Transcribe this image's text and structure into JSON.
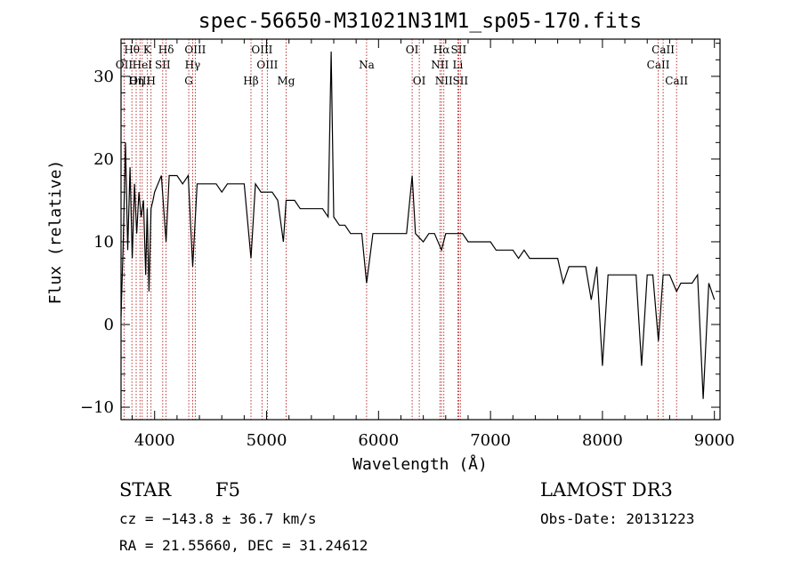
{
  "chart_data": {
    "type": "line",
    "title": "spec-56650-M31021N31M1_sp05-170.fits",
    "xlabel": "Wavelength (Å)",
    "ylabel": "Flux (relative)",
    "xlim": [
      3700,
      9050
    ],
    "ylim": [
      -11.5,
      34.5
    ],
    "xticks": [
      4000,
      5000,
      6000,
      7000,
      8000,
      9000
    ],
    "yticks": [
      -10,
      0,
      10,
      20,
      30
    ],
    "xtick_labels": [
      "4000",
      "5000",
      "6000",
      "7000",
      "8000",
      "9000"
    ],
    "ytick_labels": [
      "−10",
      "0",
      "10",
      "20",
      "30"
    ],
    "grid": false,
    "series_color": "#000000",
    "line_marker_color": "#b22222",
    "spectral_lines": [
      {
        "name": "Hθ",
        "wavelength": 3797,
        "row": 0
      },
      {
        "name": "Hα",
        "wavelength": 6563,
        "row": 0
      },
      {
        "name": "K",
        "wavelength": 3934,
        "row": 0
      },
      {
        "name": "Hδ",
        "wavelength": 4102,
        "row": 0
      },
      {
        "name": "OIII",
        "wavelength": 4363,
        "row": 0
      },
      {
        "name": "OIII",
        "wavelength": 4959,
        "row": 0
      },
      {
        "name": "OI",
        "wavelength": 6300,
        "row": 0
      },
      {
        "name": "SII",
        "wavelength": 6716,
        "row": 0
      },
      {
        "name": "CaII",
        "wavelength": 8542,
        "row": 0
      },
      {
        "name": "OII",
        "wavelength": 3727,
        "row": 1
      },
      {
        "name": "HeI",
        "wavelength": 3889,
        "row": 1
      },
      {
        "name": "SII",
        "wavelength": 4072,
        "row": 1
      },
      {
        "name": "Hγ",
        "wavelength": 4340,
        "row": 1
      },
      {
        "name": "OIII",
        "wavelength": 5007,
        "row": 1
      },
      {
        "name": "Na",
        "wavelength": 5893,
        "row": 1
      },
      {
        "name": "NII",
        "wavelength": 6548,
        "row": 1
      },
      {
        "name": "Li",
        "wavelength": 6708,
        "row": 1
      },
      {
        "name": "CaII",
        "wavelength": 8498,
        "row": 1
      },
      {
        "name": "OIII",
        "wavelength": 3869,
        "row": 2
      },
      {
        "name": "Hη",
        "wavelength": 3835,
        "row": 2
      },
      {
        "name": "H",
        "wavelength": 3968,
        "row": 2
      },
      {
        "name": "G",
        "wavelength": 4305,
        "row": 2
      },
      {
        "name": "Hβ",
        "wavelength": 4861,
        "row": 2
      },
      {
        "name": "Mg",
        "wavelength": 5175,
        "row": 2
      },
      {
        "name": "OI",
        "wavelength": 6364,
        "row": 2
      },
      {
        "name": "NII",
        "wavelength": 6583,
        "row": 2
      },
      {
        "name": "SII",
        "wavelength": 6731,
        "row": 2
      },
      {
        "name": "CaII",
        "wavelength": 8662,
        "row": 2
      }
    ],
    "spectrum": {
      "x": [
        3700,
        3720,
        3740,
        3760,
        3780,
        3800,
        3820,
        3840,
        3860,
        3880,
        3900,
        3920,
        3934,
        3950,
        3968,
        3985,
        4000,
        4030,
        4060,
        4102,
        4130,
        4160,
        4200,
        4250,
        4300,
        4340,
        4380,
        4420,
        4480,
        4550,
        4600,
        4650,
        4700,
        4750,
        4800,
        4861,
        4900,
        4950,
        5000,
        5050,
        5100,
        5150,
        5175,
        5200,
        5250,
        5300,
        5350,
        5400,
        5450,
        5500,
        5550,
        5577,
        5600,
        5650,
        5700,
        5750,
        5800,
        5850,
        5893,
        5950,
        6000,
        6050,
        6100,
        6150,
        6200,
        6250,
        6300,
        6330,
        6400,
        6450,
        6500,
        6563,
        6600,
        6650,
        6700,
        6750,
        6800,
        6850,
        6900,
        6950,
        7000,
        7050,
        7100,
        7150,
        7200,
        7250,
        7300,
        7350,
        7400,
        7450,
        7500,
        7550,
        7600,
        7650,
        7700,
        7750,
        7800,
        7850,
        7900,
        7950,
        8000,
        8050,
        8100,
        8150,
        8200,
        8250,
        8300,
        8350,
        8400,
        8450,
        8500,
        8542,
        8600,
        8662,
        8700,
        8750,
        8800,
        8850,
        8900,
        8950,
        9000
      ],
      "y": [
        1,
        10,
        22,
        9,
        19,
        8,
        17,
        11,
        16,
        13,
        15,
        6,
        14,
        4,
        14,
        15,
        16,
        17,
        18,
        10,
        18,
        18,
        18,
        17,
        18,
        7,
        17,
        17,
        17,
        17,
        16,
        17,
        17,
        17,
        17,
        8,
        17,
        16,
        16,
        16,
        15,
        10,
        15,
        15,
        15,
        14,
        14,
        14,
        14,
        14,
        13,
        33,
        13,
        12,
        12,
        11,
        11,
        11,
        5,
        11,
        11,
        11,
        11,
        11,
        11,
        11,
        18,
        11,
        10,
        11,
        11,
        9,
        11,
        11,
        11,
        11,
        10,
        10,
        10,
        10,
        10,
        9,
        9,
        9,
        9,
        8,
        9,
        8,
        8,
        8,
        8,
        8,
        8,
        5,
        7,
        7,
        7,
        7,
        3,
        7,
        -5,
        6,
        6,
        6,
        6,
        6,
        6,
        -5,
        6,
        6,
        -2,
        6,
        6,
        4,
        5,
        5,
        5,
        6,
        -9,
        5,
        3
      ]
    }
  },
  "footer": {
    "object_class": "STAR",
    "subclass": "F5",
    "survey": "LAMOST DR3",
    "redshift": "cz = −143.8 ± 36.7 km/s",
    "obs_date": "Obs-Date: 20131223",
    "coordinates": "RA =  21.55660, DEC =  31.24612"
  }
}
